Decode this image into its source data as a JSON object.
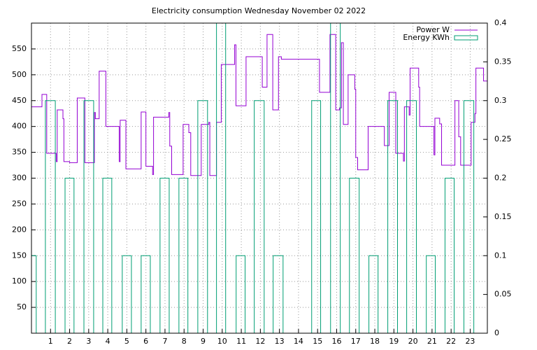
{
  "chart_data": {
    "type": "line",
    "step": "post",
    "title": "Electricity consumption Wednesday November 02 2022",
    "xlim": [
      0,
      23.9
    ],
    "xticks": [
      1,
      2,
      3,
      4,
      5,
      6,
      7,
      8,
      9,
      10,
      11,
      12,
      13,
      14,
      15,
      16,
      17,
      18,
      19,
      20,
      21,
      22,
      23
    ],
    "ylim": [
      0,
      600
    ],
    "yticks": [
      50,
      100,
      150,
      200,
      250,
      300,
      350,
      400,
      450,
      500,
      550
    ],
    "y2lim": [
      0,
      0.4
    ],
    "y2ticks": [
      0,
      0.05,
      0.1,
      0.15,
      0.2,
      0.25,
      0.3,
      0.35,
      0.4
    ],
    "grid": true,
    "legend": "top-right",
    "series": [
      {
        "name": "Power W",
        "color": "#9400d3",
        "x": [
          0,
          0.55,
          0.8,
          1.3,
          1.35,
          1.65,
          1.7,
          2.0,
          2.4,
          2.8,
          3.3,
          3.35,
          3.55,
          3.9,
          4.6,
          4.65,
          4.95,
          5.75,
          6.0,
          6.35,
          6.4,
          7.2,
          7.25,
          7.35,
          7.95,
          8.25,
          8.35,
          8.9,
          9.3,
          9.35,
          9.7,
          9.95,
          10.65,
          10.72,
          11.25,
          12.1,
          12.35,
          12.65,
          12.95,
          13.1,
          15.1,
          15.65,
          15.95,
          16.15,
          16.25,
          16.35,
          16.6,
          16.95,
          17.0,
          17.1,
          17.65,
          18.5,
          18.75,
          19.1,
          19.5,
          19.55,
          19.8,
          19.85,
          20.3,
          20.35,
          21.1,
          21.15,
          21.4,
          21.5,
          22.2,
          22.4,
          22.5,
          23.05,
          23.25,
          23.3,
          23.7,
          23.88
        ],
        "values": [
          438,
          462,
          348,
          332,
          432,
          415,
          332,
          330,
          455,
          330,
          427,
          415,
          507,
          400,
          332,
          412,
          318,
          428,
          323,
          307,
          418,
          427,
          362,
          307,
          404,
          388,
          305,
          404,
          408,
          305,
          408,
          520,
          558,
          440,
          535,
          476,
          578,
          432,
          535,
          530,
          466,
          578,
          432,
          436,
          562,
          404,
          500,
          472,
          340,
          316,
          400,
          363,
          466,
          348,
          333,
          438,
          422,
          513,
          476,
          400,
          345,
          416,
          405,
          325,
          450,
          380,
          325,
          408,
          425,
          513,
          488,
          488
        ]
      },
      {
        "name": "Energy KWh",
        "color": "#009e73",
        "axis": "y2",
        "x": [
          0,
          0.25,
          0.73,
          1.25,
          1.76,
          2.23,
          2.75,
          3.26,
          3.74,
          4.21,
          4.76,
          5.24,
          5.75,
          6.23,
          6.74,
          7.22,
          7.73,
          8.2,
          8.72,
          9.23,
          9.7,
          10.18,
          10.73,
          11.2,
          11.68,
          12.2,
          12.67,
          13.19,
          14.69,
          15.16,
          15.68,
          16.19,
          16.67,
          17.18,
          17.69,
          18.17,
          18.68,
          19.19,
          19.67,
          20.18,
          20.7,
          21.17,
          21.68,
          22.16,
          22.67,
          23.19
        ],
        "values": [
          0.1,
          0,
          0.3,
          0,
          0.2,
          0,
          0.3,
          0,
          0.2,
          0,
          0.1,
          0,
          0.1,
          0,
          0.2,
          0,
          0.2,
          0,
          0.3,
          0,
          0.4,
          0,
          0.1,
          0,
          0.3,
          0,
          0.1,
          0,
          0.3,
          0,
          0.4,
          0,
          0.2,
          0,
          0.1,
          0,
          0.3,
          0,
          0.3,
          0,
          0.1,
          0,
          0.2,
          0,
          0.3,
          0
        ]
      }
    ]
  }
}
